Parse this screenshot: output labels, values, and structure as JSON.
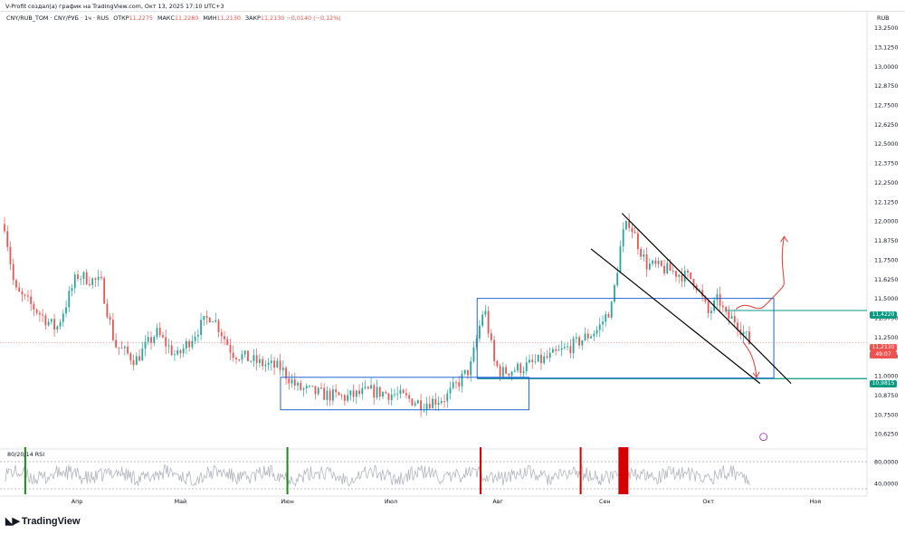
{
  "header": {
    "attribution": "V-Profit создал(а) график на TradingView.com, Окт 13, 2025 17:10 UTC+3"
  },
  "legend": {
    "symbol": "CNY/RUB_TOM · CNY/РУБ · 1ч · RUS",
    "open_label": "ОТКР",
    "open_value": "11,2275",
    "high_label": "МАКС",
    "high_value": "11,2280",
    "low_label": "МИН",
    "low_value": "11,2130",
    "close_label": "ЗАКР",
    "close_value": "11,2130",
    "change_value": "−0,0140 (−0,12%)"
  },
  "price_axis": {
    "unit": "RUB",
    "level_tag_upper": "11,4220",
    "current_price_tag": "11,2130",
    "countdown_tag": "49:07",
    "level_tag_lower": "10,9815"
  },
  "rsi_panel": {
    "label": "80/20/14 RSI",
    "ticks": [
      "80,0000",
      "40,0000"
    ]
  },
  "logo": {
    "icon": "tradingview-logo-icon",
    "text": "TradingView"
  },
  "colors": {
    "candle_up": "#26a69a",
    "candle_down": "#ef5350",
    "box": "#1e66d0",
    "level": "#089981",
    "trend": "#000000",
    "projection": "#e53935",
    "rsi_line": "#b2b5be",
    "rsi_overbought": "#d50000",
    "rsi_oversold": "#1b8a1b"
  },
  "chart_data": {
    "type": "candlestick",
    "title": "CNY/RUB_TOM · CNY/РУБ · 1ч · RUS",
    "ylabel": "RUB",
    "ylim": [
      10.55,
      13.3
    ],
    "y_ticks": [
      "13,2500",
      "13,1250",
      "13,0000",
      "12,8750",
      "12,7500",
      "12,6250",
      "12,5000",
      "12,3750",
      "12,2500",
      "12,1250",
      "12,0000",
      "11,8750",
      "11,7500",
      "11,6250",
      "11,5000",
      "11,3750",
      "11,2500",
      "11,1250",
      "11,0000",
      "10,8750",
      "10,7500",
      "10,6250"
    ],
    "x_ticks": [
      "Апр",
      "Май",
      "Июн",
      "Июл",
      "Авг",
      "Сен",
      "Окт",
      "Ноя"
    ],
    "price_path": {
      "dates": [
        "2025-03-11",
        "2025-03-14",
        "2025-03-19",
        "2025-03-26",
        "2025-04-01",
        "2025-04-08",
        "2025-04-12",
        "2025-04-18",
        "2025-04-24",
        "2025-04-30",
        "2025-05-06",
        "2025-05-10",
        "2025-05-16",
        "2025-05-24",
        "2025-05-30",
        "2025-06-04",
        "2025-06-11",
        "2025-06-18",
        "2025-06-25",
        "2025-07-02",
        "2025-07-10",
        "2025-07-17",
        "2025-07-24",
        "2025-07-28",
        "2025-07-31",
        "2025-08-02",
        "2025-08-09",
        "2025-08-16",
        "2025-08-23",
        "2025-08-30",
        "2025-09-03",
        "2025-09-06",
        "2025-09-08",
        "2025-09-13",
        "2025-09-20",
        "2025-09-27",
        "2025-10-01",
        "2025-10-04",
        "2025-10-06",
        "2025-10-09",
        "2025-10-13"
      ],
      "prices": [
        11.98,
        11.55,
        11.45,
        11.3,
        11.65,
        11.6,
        11.2,
        11.1,
        11.28,
        11.12,
        11.3,
        11.4,
        11.15,
        11.08,
        11.05,
        10.92,
        10.88,
        10.86,
        10.9,
        10.88,
        10.82,
        10.86,
        11.05,
        11.45,
        11.08,
        11.02,
        11.06,
        11.12,
        11.2,
        11.3,
        11.45,
        11.9,
        12.0,
        11.72,
        11.68,
        11.62,
        11.4,
        11.5,
        11.38,
        11.36,
        11.213
      ]
    },
    "horizontal_levels": [
      11.422,
      10.9815
    ],
    "current_price": 11.213,
    "annotations": {
      "box_june_july": {
        "from": "2025-05-30",
        "to": "2025-08-10",
        "low": 10.78,
        "high": 10.99
      },
      "box_aug_oct": {
        "from": "2025-07-26",
        "to": "2025-10-20",
        "low": 10.985,
        "high": 11.5
      },
      "descending_channel_upper": {
        "from": [
          "2025-09-06",
          12.05
        ],
        "to": [
          "2025-10-25",
          10.95
        ]
      },
      "descending_channel_lower": {
        "from": [
          "2025-08-28",
          11.82
        ],
        "to": [
          "2025-10-16",
          10.95
        ]
      },
      "projection_up": {
        "from": [
          "2025-10-09",
          11.43
        ],
        "to": [
          "2025-10-23",
          11.9
        ]
      },
      "projection_down": {
        "from": [
          "2025-10-11",
          11.22
        ],
        "to": [
          "2025-10-15",
          10.99
        ]
      }
    },
    "rsi": {
      "label": "80/20/14 RSI",
      "ylim": [
        20,
        100
      ],
      "upper_band": 80,
      "lower_band": 20
    },
    "grid": false,
    "legend_position": "top-left"
  }
}
